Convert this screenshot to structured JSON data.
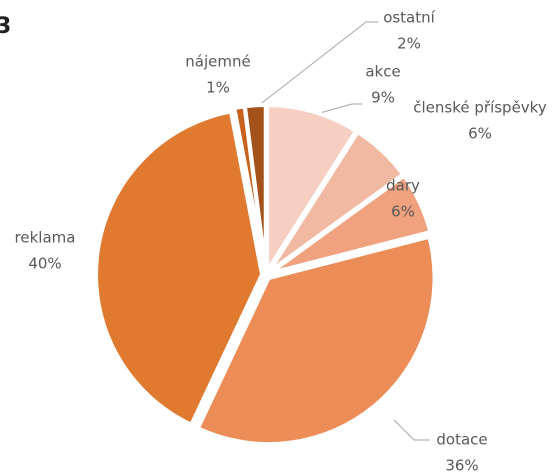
{
  "chart_data": {
    "type": "pie",
    "title": "3",
    "categories": [
      "akce",
      "členské příspěvky",
      "dary",
      "dotace",
      "reklama",
      "nájemné",
      "ostatní"
    ],
    "values": [
      9,
      6,
      6,
      36,
      40,
      1,
      2
    ],
    "value_labels": [
      "9%",
      "6%",
      "6%",
      "36%",
      "40%",
      "1%",
      "2%"
    ],
    "colors": [
      "#f6cfc2",
      "#f2b9a2",
      "#f0a27f",
      "#ec8c56",
      "#e07a30",
      "#c8621f",
      "#a3521c"
    ]
  }
}
